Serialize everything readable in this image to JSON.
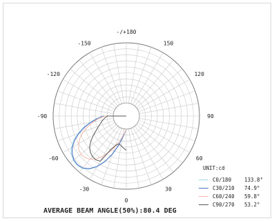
{
  "chart_data": {
    "type": "polar-line",
    "angle_labels": [
      {
        "text": "-/+180",
        "angle": 180
      },
      {
        "text": "150",
        "angle": 150
      },
      {
        "text": "120",
        "angle": 120
      },
      {
        "text": "90",
        "angle": 90
      },
      {
        "text": "60",
        "angle": 60
      },
      {
        "text": "30",
        "angle": 30
      },
      {
        "text": "0",
        "angle": 0
      },
      {
        "text": "-30",
        "angle": -30
      },
      {
        "text": "-60",
        "angle": -60
      },
      {
        "text": "-90",
        "angle": -90
      },
      {
        "text": "-120",
        "angle": -120
      },
      {
        "text": "-150",
        "angle": -150
      }
    ],
    "unit_label": "UNIT:cd",
    "grid": true,
    "ring_count": 10,
    "spoke_step_deg": 10,
    "r_max": 100,
    "series": [
      {
        "name": "C0/180",
        "value": "133.8°",
        "color": "#9fd4e8",
        "points": [
          [
            -90,
            18
          ],
          [
            -85,
            28
          ],
          [
            -80,
            40
          ],
          [
            -75,
            52
          ],
          [
            -70,
            64
          ],
          [
            -65,
            75
          ],
          [
            -60,
            84
          ],
          [
            -55,
            90
          ],
          [
            -50,
            93
          ],
          [
            -45,
            94
          ],
          [
            -40,
            92
          ],
          [
            -35,
            86
          ],
          [
            -30,
            76
          ],
          [
            -25,
            62
          ],
          [
            -20,
            46
          ],
          [
            -15,
            30
          ],
          [
            -10,
            16
          ],
          [
            -5,
            6
          ],
          [
            0,
            0
          ]
        ]
      },
      {
        "name": "C30/210",
        "value": "74.9°",
        "color": "#4a6fc2",
        "points": [
          [
            -90,
            16
          ],
          [
            -85,
            26
          ],
          [
            -80,
            38
          ],
          [
            -75,
            50
          ],
          [
            -70,
            62
          ],
          [
            -65,
            73
          ],
          [
            -60,
            82
          ],
          [
            -55,
            88
          ],
          [
            -50,
            92
          ],
          [
            -45,
            93
          ],
          [
            -40,
            91
          ],
          [
            -35,
            85
          ],
          [
            -30,
            75
          ],
          [
            -25,
            61
          ],
          [
            -20,
            45
          ],
          [
            -15,
            29
          ],
          [
            -10,
            15
          ],
          [
            -5,
            6
          ],
          [
            0,
            0
          ]
        ]
      },
      {
        "name": "C60/240",
        "value": "59.8°",
        "color": "#f2b8a8",
        "points": [
          [
            -90,
            14
          ],
          [
            -85,
            24
          ],
          [
            -80,
            34
          ],
          [
            -75,
            44
          ],
          [
            -70,
            54
          ],
          [
            -65,
            63
          ],
          [
            -60,
            70
          ],
          [
            -55,
            75
          ],
          [
            -50,
            77
          ],
          [
            -45,
            76
          ],
          [
            -40,
            72
          ],
          [
            -35,
            65
          ],
          [
            -30,
            55
          ],
          [
            -25,
            44
          ],
          [
            -20,
            32
          ],
          [
            -15,
            21
          ],
          [
            -10,
            12
          ],
          [
            -5,
            5
          ],
          [
            0,
            0
          ]
        ]
      },
      {
        "name": "C90/270",
        "value": "53.2°",
        "color": "#555555",
        "points": [
          [
            -90,
            10
          ],
          [
            -85,
            14
          ],
          [
            -80,
            18
          ],
          [
            -75,
            22
          ],
          [
            -70,
            27
          ],
          [
            -65,
            33
          ],
          [
            -60,
            41
          ],
          [
            -55,
            50
          ],
          [
            -50,
            58
          ],
          [
            -45,
            63
          ],
          [
            -40,
            66
          ],
          [
            -35,
            67
          ],
          [
            -30,
            65
          ],
          [
            -25,
            40
          ],
          [
            -20,
            30
          ],
          [
            -15,
            26
          ],
          [
            -10,
            28
          ],
          [
            -5,
            32
          ],
          [
            0,
            35
          ]
        ]
      }
    ],
    "footer": "AVERAGE BEAM ANGLE(50%):80.4 DEG"
  }
}
